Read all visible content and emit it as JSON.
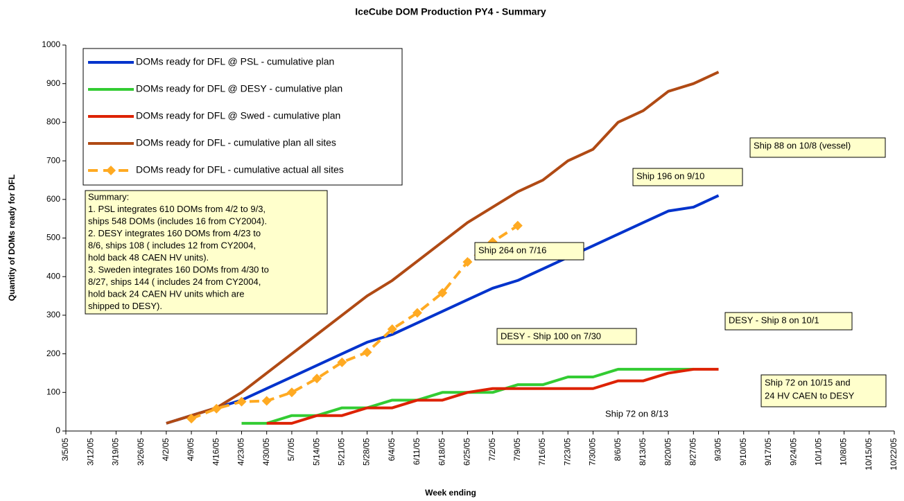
{
  "chart_data": {
    "type": "line",
    "title": "IceCube DOM Production PY4 - Summary",
    "x_label": "Week ending",
    "y_label": "Quantity of DOMs ready for DFL",
    "categories": [
      "3/5/05",
      "3/12/05",
      "3/19/05",
      "3/26/05",
      "4/2/05",
      "4/9/05",
      "4/16/05",
      "4/23/05",
      "4/30/05",
      "5/7/05",
      "5/14/05",
      "5/21/05",
      "5/28/05",
      "6/4/05",
      "6/11/05",
      "6/18/05",
      "6/25/05",
      "7/2/05",
      "7/9/05",
      "7/16/05",
      "7/23/05",
      "7/30/05",
      "8/6/05",
      "8/13/05",
      "8/20/05",
      "8/27/05",
      "9/3/05",
      "9/10/05",
      "9/17/05",
      "9/24/05",
      "10/1/05",
      "10/8/05",
      "10/15/05",
      "10/22/05"
    ],
    "ylim": [
      0,
      1000
    ],
    "yticks": [
      0,
      100,
      200,
      300,
      400,
      500,
      600,
      700,
      800,
      900,
      1000
    ],
    "grid": false,
    "legend": "upper left",
    "series": [
      {
        "name": "DOMs ready for DFL @ PSL - cumulative plan",
        "color": "#0033cc",
        "dash": false,
        "marker": null,
        "values": [
          null,
          null,
          null,
          null,
          20,
          40,
          60,
          80,
          110,
          140,
          170,
          200,
          230,
          250,
          280,
          310,
          340,
          370,
          390,
          420,
          450,
          480,
          510,
          540,
          570,
          580,
          610,
          null,
          null,
          null,
          null,
          null,
          null,
          null
        ]
      },
      {
        "name": "DOMs ready for DFL @ DESY - cumulative plan",
        "color": "#33cc33",
        "dash": false,
        "marker": null,
        "values": [
          null,
          null,
          null,
          null,
          null,
          null,
          null,
          20,
          20,
          40,
          40,
          60,
          60,
          80,
          80,
          100,
          100,
          100,
          120,
          120,
          140,
          140,
          160,
          160,
          160,
          160,
          null,
          null,
          null,
          null,
          null,
          null,
          null,
          null
        ]
      },
      {
        "name": "DOMs ready for DFL @ Swed - cumulative plan",
        "color": "#dd2200",
        "dash": false,
        "marker": null,
        "values": [
          null,
          null,
          null,
          null,
          null,
          null,
          null,
          null,
          20,
          20,
          40,
          40,
          60,
          60,
          80,
          80,
          100,
          110,
          110,
          110,
          110,
          110,
          130,
          130,
          150,
          160,
          160,
          null,
          null,
          null,
          null,
          null,
          null,
          null
        ]
      },
      {
        "name": "DOMs ready for DFL - cumulative plan all sites",
        "color": "#b04a14",
        "dash": false,
        "marker": null,
        "values": [
          null,
          null,
          null,
          null,
          20,
          40,
          60,
          100,
          150,
          200,
          250,
          300,
          350,
          390,
          440,
          490,
          540,
          580,
          620,
          650,
          700,
          730,
          800,
          830,
          880,
          900,
          930,
          null,
          null,
          null,
          null,
          null,
          null,
          null
        ]
      },
      {
        "name": "DOMs ready for DFL - cumulative actual all sites",
        "color": "#ffaa22",
        "dash": true,
        "marker": "diamond",
        "values": [
          null,
          null,
          null,
          null,
          null,
          32,
          58,
          76,
          78,
          100,
          136,
          178,
          204,
          264,
          306,
          358,
          438,
          490,
          532,
          null,
          null,
          null,
          null,
          null,
          null,
          null,
          null,
          null,
          null,
          null,
          null,
          null,
          null,
          null
        ]
      }
    ],
    "summary": [
      "Summary:",
      "1. PSL integrates 610 DOMs from 4/2 to 9/3,",
      "ships 548 DOMs (includes 16 from CY2004).",
      "2. DESY integrates 160 DOMs from 4/23 to",
      "8/6, ships 108 ( includes 12 from CY2004,",
      "hold back 48 CAEN HV units).",
      "3. Sweden integrates 160 DOMs from 4/30 to",
      "8/27, ships 144 ( includes 24 from CY2004,",
      "hold back 24 CAEN HV units which are",
      "shipped to DESY)."
    ],
    "annotations": [
      [
        "Ship 88 on 10/8 (vessel)"
      ],
      [
        "Ship 196 on 9/10"
      ],
      [
        "Ship 264 on 7/16"
      ],
      [
        "DESY - Ship 100 on 7/30"
      ],
      [
        "DESY - Ship 8 on 10/1"
      ],
      [
        "Ship 72 on 10/15 and",
        "24 HV CAEN to DESY"
      ],
      [
        "Ship 72 on 8/13"
      ]
    ]
  }
}
